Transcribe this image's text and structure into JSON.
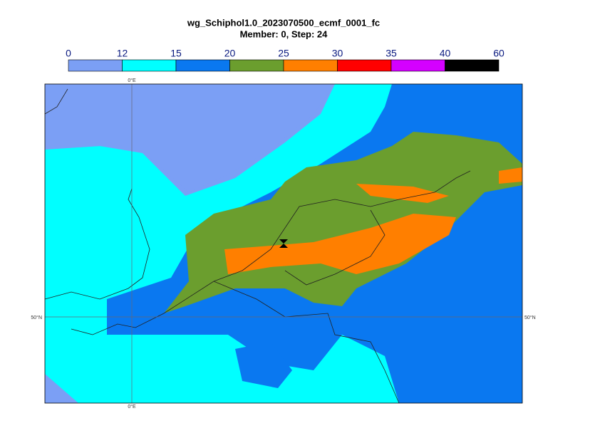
{
  "title": "wg_Schiphol1.0_2023070500_ecmf_0001_fc",
  "subtitle": "Member: 0, Step: 24",
  "colorbar": {
    "ticks": [
      0,
      12,
      15,
      20,
      25,
      30,
      35,
      40,
      60
    ],
    "colors": [
      "#7b9ff5",
      "#00ffff",
      "#0a78f0",
      "#6b9e2e",
      "#ff7f00",
      "#ff0000",
      "#d400ff",
      "#000000"
    ]
  },
  "graticule": {
    "lon_label": "0°E",
    "lat_label": "50°N"
  }
}
